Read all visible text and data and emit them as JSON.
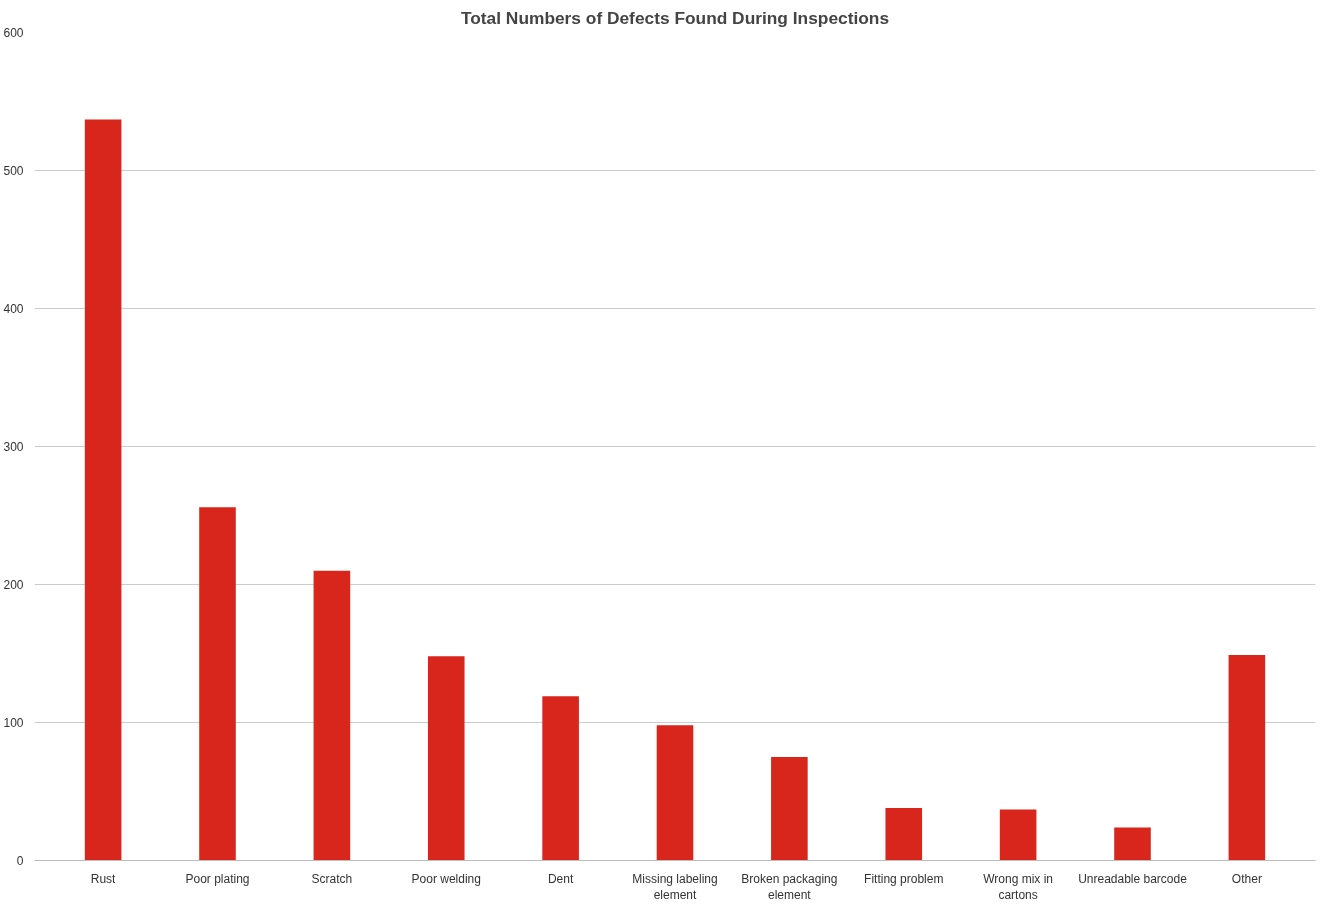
{
  "chart_data": {
    "type": "bar",
    "title": "Total Numbers of Defects Found During Inspections",
    "categories": [
      "Rust",
      "Poor plating",
      "Scratch",
      "Poor welding",
      "Dent",
      "Missing labeling element",
      "Broken packaging element",
      "Fitting problem",
      "Wrong mix in cartons",
      "Unreadable barcode",
      "Other"
    ],
    "values": [
      537,
      256,
      210,
      148,
      119,
      98,
      75,
      38,
      37,
      24,
      149
    ],
    "color": "#d9261c",
    "ylim": [
      0,
      600
    ],
    "yticks": [
      0,
      100,
      200,
      300,
      400,
      500,
      600
    ],
    "grid": "y"
  }
}
